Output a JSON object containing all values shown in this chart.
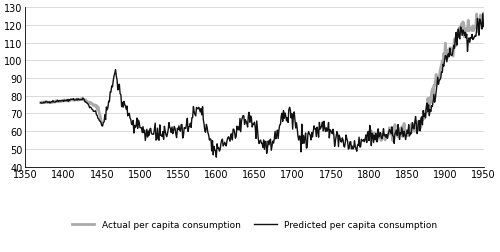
{
  "title": "",
  "xlim": [
    1350,
    1950
  ],
  "ylim": [
    40,
    130
  ],
  "xticks": [
    1350,
    1400,
    1450,
    1500,
    1550,
    1600,
    1650,
    1700,
    1750,
    1800,
    1850,
    1900,
    1950
  ],
  "yticks": [
    40,
    50,
    60,
    70,
    80,
    90,
    100,
    110,
    120,
    130
  ],
  "actual_color": "#aaaaaa",
  "predicted_color": "#111111",
  "background_color": "#ffffff",
  "legend_actual": "Actual per capita consumption",
  "legend_predicted": "Predicted per capita consumption",
  "actual_linewidth": 2.0,
  "predicted_linewidth": 1.0,
  "seed": 42
}
